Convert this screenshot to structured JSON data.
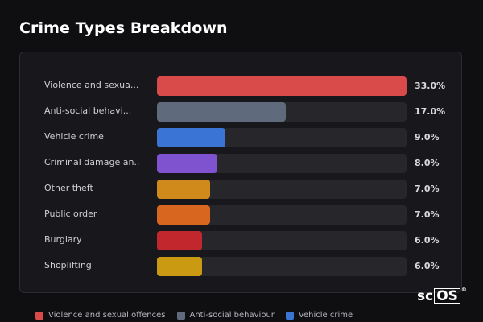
{
  "colors": {
    "background": "#0f0f12",
    "panel": "#18181c",
    "track": "#26262b"
  },
  "chart_data": {
    "type": "bar",
    "orientation": "horizontal",
    "title": "Crime Types Breakdown",
    "categories": [
      "Violence and sexual offences",
      "Anti-social behaviour",
      "Vehicle crime",
      "Criminal damage and arson",
      "Other theft",
      "Public order",
      "Burglary",
      "Shoplifting"
    ],
    "display_labels": [
      "Violence and sexua...",
      "Anti-social behavi...",
      "Vehicle crime",
      "Criminal damage an...",
      "Other theft",
      "Public order",
      "Burglary",
      "Shoplifting"
    ],
    "values": [
      33.0,
      17.0,
      9.0,
      8.0,
      7.0,
      7.0,
      6.0,
      6.0
    ],
    "value_labels": [
      "33.0%",
      "17.0%",
      "9.0%",
      "8.0%",
      "7.0%",
      "7.0%",
      "6.0%",
      "6.0%"
    ],
    "colors": [
      "#d94a4a",
      "#5f6b7c",
      "#3a75d6",
      "#7f52d0",
      "#d08a1c",
      "#d8661f",
      "#c2272d",
      "#c99a12"
    ],
    "xlim": [
      0,
      33.0
    ],
    "grid": false,
    "legend": {
      "placement": "bottom",
      "entries": [
        {
          "label": "Violence and sexual offences",
          "color": "#d94a4a"
        },
        {
          "label": "Anti-social behaviour",
          "color": "#5f6b7c"
        },
        {
          "label": "Vehicle crime",
          "color": "#3a75d6"
        }
      ]
    }
  },
  "logo": {
    "text": "sc",
    "boxed": "OS",
    "mark": "®"
  }
}
